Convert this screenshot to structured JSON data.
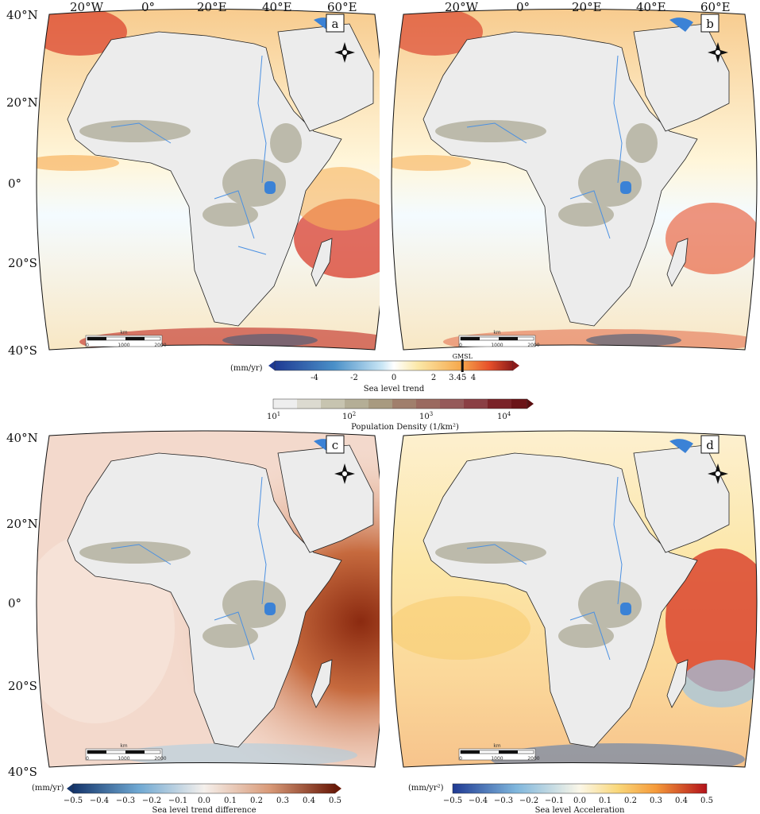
{
  "panels": {
    "a": {
      "letter": "a",
      "top_lats": [
        "40°N",
        "20°N",
        "0°",
        "20°S",
        "40°S"
      ],
      "lons": [
        "20°W",
        "0°",
        "20°E",
        "40°E",
        "60°E"
      ]
    },
    "b": {
      "letter": "b",
      "lons": [
        "20°W",
        "0°",
        "20°E",
        "40°E",
        "60°E"
      ]
    },
    "c": {
      "letter": "c",
      "lats": [
        "40°N",
        "20°N",
        "0°",
        "20°S",
        "40°S"
      ]
    },
    "d": {
      "letter": "d"
    }
  },
  "scalebar": {
    "unit": "km",
    "ticks": [
      "0",
      "1000",
      "2000"
    ]
  },
  "colorbars": {
    "trend": {
      "unit": "(mm/yr)",
      "title": "Sea level trend",
      "ticks": [
        "-4",
        "-2",
        "0",
        "2",
        "4"
      ],
      "marker_label": "GMSL",
      "marker_value": "3.45",
      "marker_number": 3.45,
      "range": [
        -6,
        6
      ]
    },
    "population": {
      "title": "Population Density (1/km²)",
      "ticks": [
        "10",
        "10",
        "10",
        "10"
      ],
      "exps": [
        "1",
        "2",
        "3",
        "4"
      ]
    },
    "difference": {
      "unit": "(mm/yr)",
      "title": "Sea level trend difference",
      "ticks": [
        "−0.5",
        "−0.4",
        "−0.3",
        "−0.2",
        "−0.1",
        "0.0",
        "0.1",
        "0.2",
        "0.3",
        "0.4",
        "0.5"
      ]
    },
    "acceleration": {
      "unit": "(mm/yr²)",
      "title": "Sea level Acceleration",
      "ticks": [
        "−0.5",
        "−0.4",
        "−0.3",
        "−0.2",
        "−0.1",
        "0.0",
        "0.1",
        "0.2",
        "0.3",
        "0.4",
        "0.5"
      ]
    }
  },
  "colors": {
    "land": "#ececec",
    "lake": "#3b82d6",
    "trend_pos": "#e7502a",
    "trend_neg": "#3d77b8",
    "diff_pos": "#b5532c",
    "accel_pos": "#d7301f"
  }
}
